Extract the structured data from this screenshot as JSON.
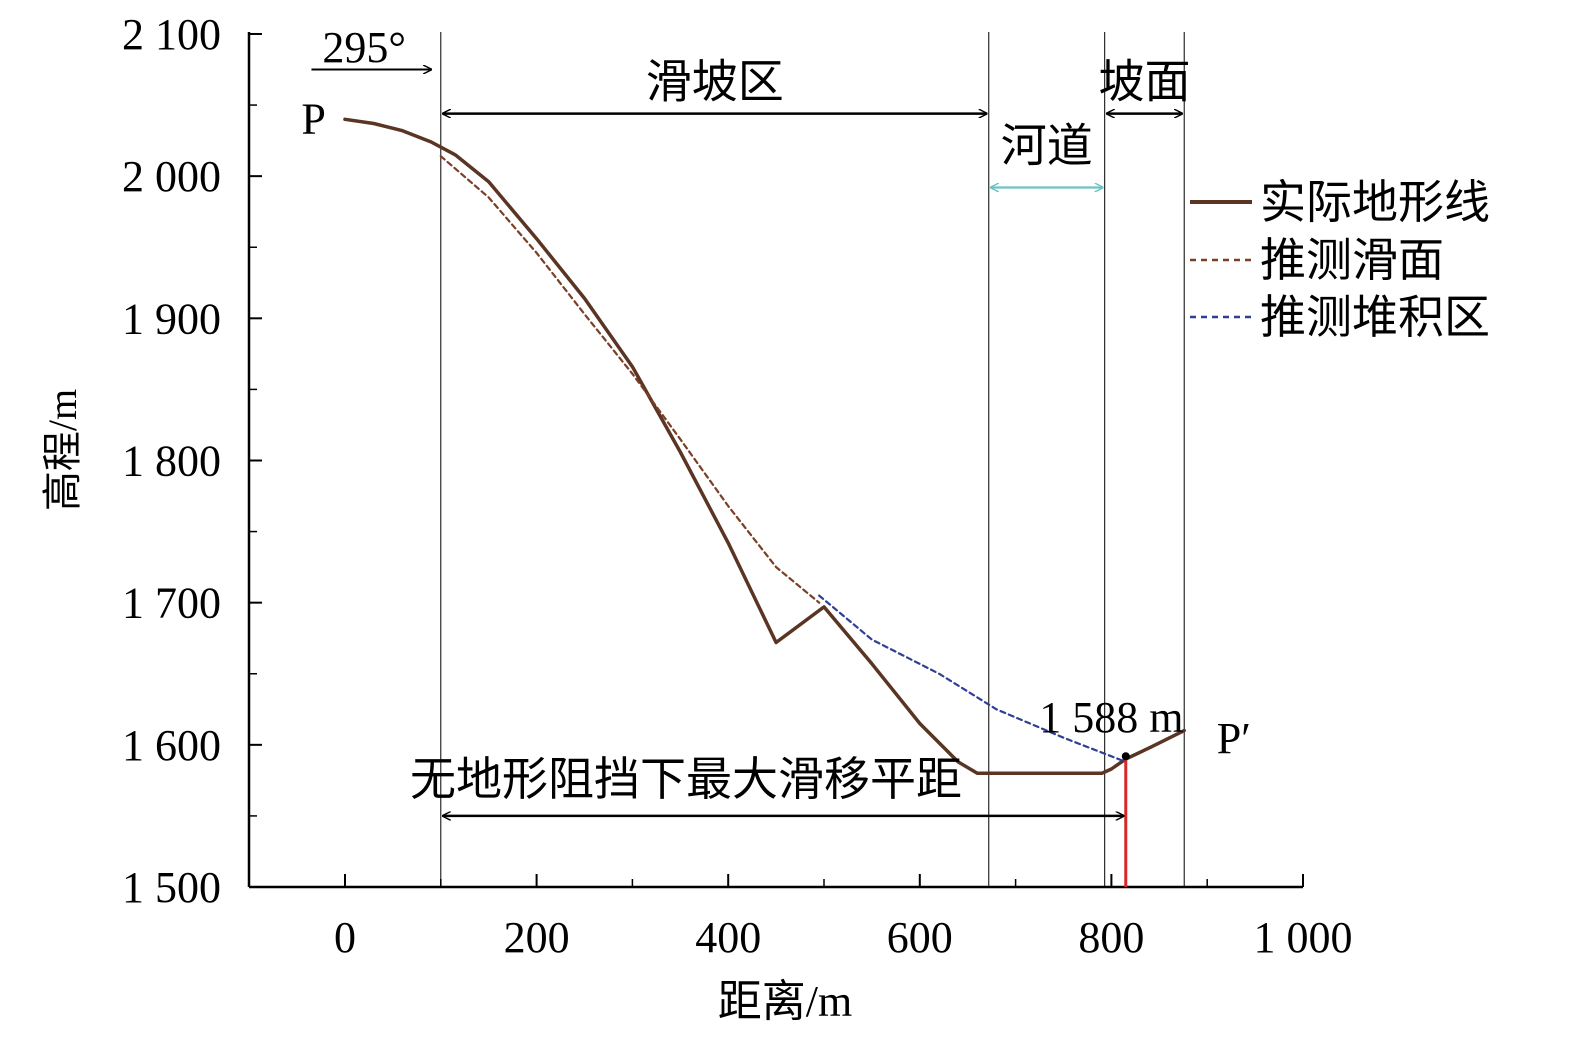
{
  "chart_data": {
    "type": "line",
    "title": "",
    "xlabel": "距离/m",
    "ylabel": "高程/m",
    "xlim": [
      -100,
      1000
    ],
    "ylim": [
      1500,
      2100
    ],
    "x_ticks": [
      0,
      200,
      400,
      600,
      800,
      1000
    ],
    "x_tick_labels": [
      "0",
      "200",
      "400",
      "600",
      "800",
      "1 000"
    ],
    "y_ticks": [
      1500,
      1600,
      1700,
      1800,
      1900,
      2000,
      2100
    ],
    "y_tick_labels": [
      "1 500",
      "1 600",
      "1 700",
      "1 800",
      "1 900",
      "2 000",
      "2 100"
    ],
    "grid": false,
    "legend_position": "right",
    "series": [
      {
        "name": "实际地形线",
        "color": "#5a3523",
        "style": "solid",
        "x": [
          0,
          30,
          60,
          90,
          115,
          150,
          200,
          250,
          300,
          350,
          400,
          450,
          500,
          550,
          600,
          640,
          660,
          700,
          750,
          790,
          800,
          815,
          840,
          876
        ],
        "y": [
          2040,
          2037,
          2032,
          2024,
          2015,
          1996,
          1956,
          1914,
          1866,
          1806,
          1742,
          1672,
          1697,
          1657,
          1615,
          1588,
          1580,
          1580,
          1580,
          1580,
          1583,
          1590,
          1598,
          1610
        ]
      },
      {
        "name": "推测滑面",
        "color": "#7a3f26",
        "style": "dashed",
        "x": [
          100,
          150,
          200,
          250,
          300,
          350,
          400,
          450,
          495
        ],
        "y": [
          2014,
          1985,
          1946,
          1903,
          1861,
          1815,
          1768,
          1725,
          1700
        ]
      },
      {
        "name": "推测堆积区",
        "color": "#2f3f96",
        "style": "dashed",
        "x": [
          495,
          550,
          620,
          680,
          750,
          815
        ],
        "y": [
          1705,
          1674,
          1650,
          1625,
          1605,
          1588
        ]
      }
    ],
    "vertical_lines": [
      100,
      672,
      793,
      876
    ],
    "zones": [
      {
        "label": "滑坡区",
        "from": 100,
        "to": 672,
        "y": 2044,
        "color": "#000000",
        "label_y": 2065
      },
      {
        "label": "河道",
        "from": 672,
        "to": 793,
        "y": 1992,
        "color": "#6cc3c6",
        "label_y": 2020
      },
      {
        "label": "坡面",
        "from": 793,
        "to": 876,
        "y": 2044,
        "color": "#000000",
        "label_y": 2065
      }
    ],
    "max_distance": {
      "label": "无地形阻挡下最大滑移平距",
      "from": 100,
      "to": 815,
      "y": 1550
    },
    "red_marker": {
      "x": 815,
      "y_from": 1500,
      "y_to": 1592,
      "color": "#d62728"
    },
    "annotations": [
      {
        "text": "295°",
        "x": 20,
        "y": 2090
      },
      {
        "text": "P",
        "x": -20,
        "y": 2040
      },
      {
        "text": "P′",
        "x": 910,
        "y": 1604
      },
      {
        "text": "1 588 m",
        "x": 800,
        "y": 1619
      }
    ],
    "direction_arrow": {
      "x_from": -35,
      "x_to": 90,
      "y": 2075
    }
  }
}
